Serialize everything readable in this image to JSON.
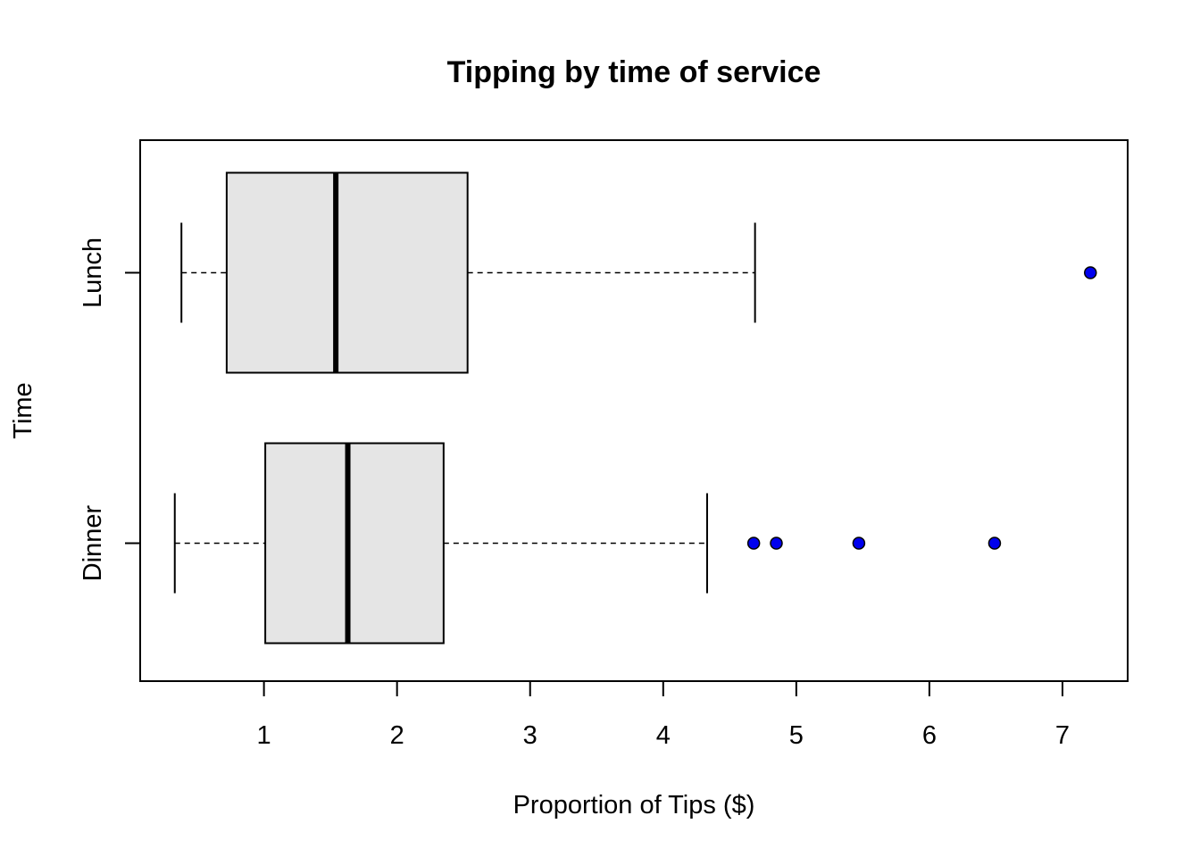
{
  "chart_data": {
    "type": "boxplot",
    "orientation": "horizontal",
    "title": "Tipping by time of service",
    "xlabel": "Proportion of Tips ($)",
    "ylabel": "Time",
    "xlim": [
      0.07,
      7.49
    ],
    "xticks": [
      1,
      2,
      3,
      4,
      5,
      6,
      7
    ],
    "categories": [
      "Dinner",
      "Lunch"
    ],
    "boxes": [
      {
        "category": "Dinner",
        "min": 0.33,
        "q1": 1.01,
        "median": 1.63,
        "q3": 2.35,
        "max": 4.33,
        "outliers": [
          4.68,
          4.85,
          5.47,
          6.49
        ]
      },
      {
        "category": "Lunch",
        "min": 0.38,
        "q1": 0.72,
        "median": 1.54,
        "q3": 2.53,
        "max": 4.69,
        "outliers": [
          7.21
        ]
      }
    ],
    "grid": false,
    "colors": {
      "box_fill": "#e5e5e5",
      "outlier_fill": "#0000ee",
      "line": "#000000"
    }
  }
}
